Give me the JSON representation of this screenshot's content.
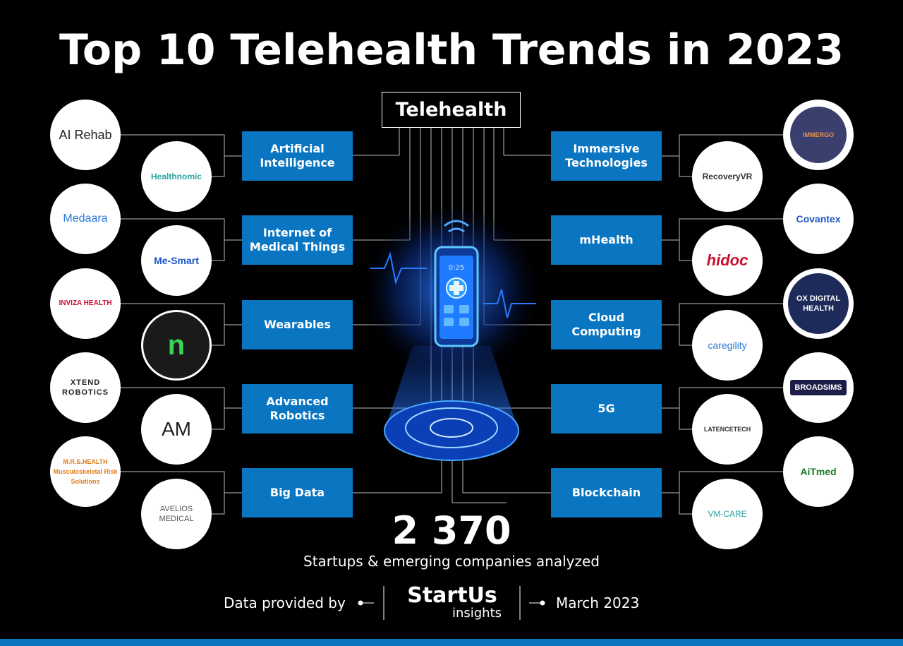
{
  "title": "Top 10 Telehealth Trends in 2023",
  "center_label": "Telehealth",
  "trends_left": [
    {
      "label": "Artificial Intelligence"
    },
    {
      "label": "Internet of Medical Things"
    },
    {
      "label": "Wearables"
    },
    {
      "label": "Advanced Robotics"
    },
    {
      "label": "Big Data"
    }
  ],
  "trends_right": [
    {
      "label": "Immersive Technologies"
    },
    {
      "label": "mHealth"
    },
    {
      "label": "Cloud Computing"
    },
    {
      "label": "5G"
    },
    {
      "label": "Blockchain"
    }
  ],
  "logos_left": [
    {
      "outer": "AI Rehab",
      "inner": "Healthnomic"
    },
    {
      "outer": "Medaara",
      "inner": "Me-Smart"
    },
    {
      "outer": "INVIZA HEALTH",
      "inner": "n"
    },
    {
      "outer": "XTEND ROBOTICS",
      "inner": "AM"
    },
    {
      "outer": "M.R.S.HEALTH Musculoskeletal Risk Solutions",
      "inner": "AVELIOS MEDICAL"
    }
  ],
  "logos_right": [
    {
      "outer": "IMMERGO",
      "inner": "RecoveryVR"
    },
    {
      "outer": "Covantex",
      "inner": "hidoc"
    },
    {
      "outer": "OX DIGITAL HEALTH",
      "inner": "caregility"
    },
    {
      "outer": "BROADSIMS",
      "inner": "LATENCETECH"
    },
    {
      "outer": "AiTmed",
      "inner": "VM-CARE"
    }
  ],
  "phone_time": "0:25",
  "stats": {
    "number": "2 370",
    "caption": "Startups & emerging companies analyzed"
  },
  "footer": {
    "provided_by": "Data provided by",
    "brand_name": "StartUs",
    "brand_tag": "insights",
    "date": "March 2023"
  },
  "colors": {
    "trend_box": "#0a76c2",
    "background": "#000000",
    "bar": "#0a76c2"
  }
}
